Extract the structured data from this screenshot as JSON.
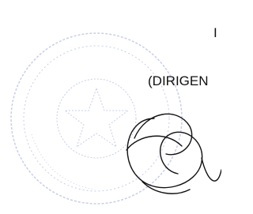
{
  "document": {
    "lines": [
      "I",
      "(DIRIGEN"
    ]
  }
}
